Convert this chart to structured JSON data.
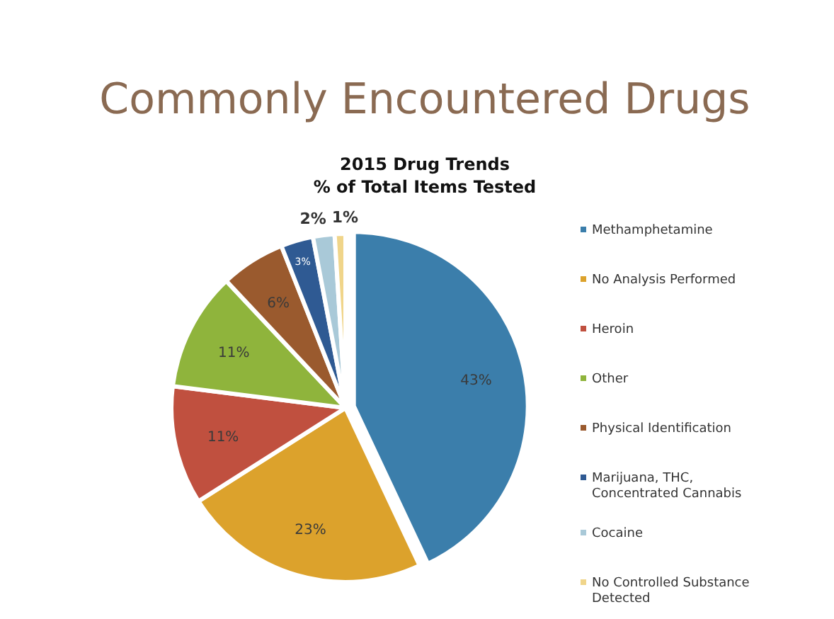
{
  "chart_data": {
    "type": "pie",
    "title": "Commonly Encountered Drugs",
    "subtitle": "2015 Drug Trends\n% of Total Items Tested",
    "categories": [
      "Methamphetamine",
      "No Analysis Performed",
      "Heroin",
      "Other",
      "Physical Identification",
      "Marijuana, THC, Concentrated Cannabis",
      "Cocaine",
      "No Controlled Substance Detected"
    ],
    "values": [
      43,
      23,
      11,
      11,
      6,
      3,
      2,
      1
    ],
    "colors": [
      "#3b7eab",
      "#dca22c",
      "#c0503f",
      "#8fb43c",
      "#9a5a2e",
      "#2f5a93",
      "#a9c9d8",
      "#f0d58a"
    ],
    "value_labels": [
      "43%",
      "23%",
      "11%",
      "11%",
      "6%",
      "3%",
      "2%",
      "1%"
    ],
    "legend": "right"
  }
}
